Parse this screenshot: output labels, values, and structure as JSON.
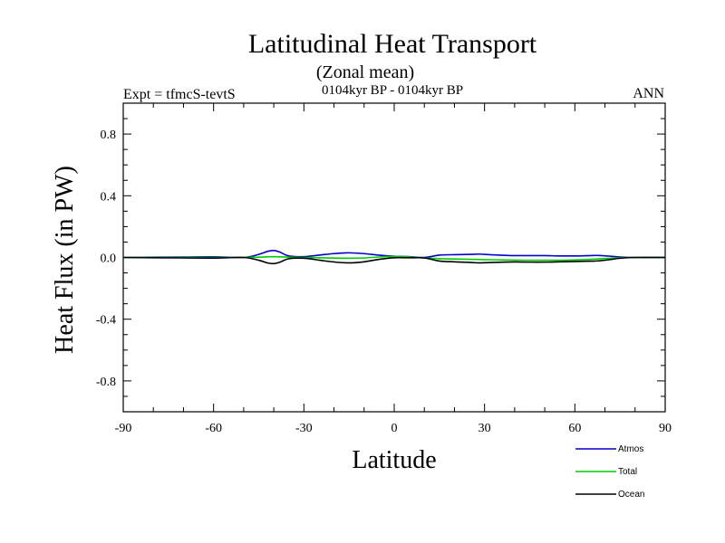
{
  "chart_data": {
    "type": "line",
    "title": "Latitudinal Heat Transport",
    "subtitle": "(Zonal mean)",
    "period": "0104kyr BP - 0104kyr BP",
    "expt_label": "Expt = tfmcS-tevtS",
    "season": "ANN",
    "xlabel": "Latitude",
    "ylabel": "Heat Flux (in PW)",
    "xlim": [
      -90,
      90
    ],
    "ylim": [
      -1.0,
      1.0
    ],
    "x_ticks": [
      -90,
      -60,
      -30,
      0,
      30,
      60,
      90
    ],
    "x_tick_labels": [
      "-90",
      "-60",
      "-30",
      "0",
      "30",
      "60",
      "90"
    ],
    "y_ticks": [
      -0.8,
      -0.4,
      0.0,
      0.4,
      0.8
    ],
    "y_tick_labels": [
      "-0.8",
      "-0.4",
      "0.0",
      "0.4",
      "0.8"
    ],
    "grid": false,
    "legend_position": "bottom-right",
    "series": [
      {
        "name": "Atmos",
        "color": "#0000cc",
        "x": [
          -90,
          -70,
          -60,
          -50,
          -45,
          -42,
          -40,
          -38,
          -35,
          -30,
          -25,
          -20,
          -15,
          -10,
          -5,
          0,
          5,
          10,
          15,
          20,
          25,
          28,
          30,
          35,
          40,
          45,
          50,
          55,
          60,
          65,
          68,
          72,
          75,
          80,
          90
        ],
        "y": [
          0.0,
          0.003,
          0.004,
          0.0,
          0.02,
          0.04,
          0.045,
          0.035,
          0.01,
          0.005,
          0.015,
          0.025,
          0.03,
          0.025,
          0.015,
          0.008,
          0.005,
          0.0,
          0.015,
          0.018,
          0.02,
          0.022,
          0.02,
          0.015,
          0.012,
          0.012,
          0.012,
          0.01,
          0.01,
          0.012,
          0.013,
          0.008,
          0.003,
          0.0,
          0.0
        ]
      },
      {
        "name": "Total",
        "color": "#00cc00",
        "x": [
          -90,
          -70,
          -60,
          -50,
          -45,
          -42,
          -40,
          -38,
          -35,
          -30,
          -25,
          -20,
          -15,
          -10,
          -5,
          0,
          5,
          10,
          15,
          20,
          25,
          28,
          30,
          35,
          40,
          45,
          50,
          55,
          60,
          65,
          68,
          72,
          75,
          80,
          90
        ],
        "y": [
          0.0,
          0.0,
          0.0,
          0.0,
          0.002,
          0.004,
          0.005,
          0.004,
          0.002,
          0.0,
          -0.002,
          -0.004,
          -0.005,
          -0.003,
          0.003,
          0.006,
          0.003,
          -0.003,
          -0.008,
          -0.01,
          -0.012,
          -0.013,
          -0.014,
          -0.016,
          -0.017,
          -0.018,
          -0.018,
          -0.018,
          -0.016,
          -0.012,
          -0.009,
          -0.005,
          -0.002,
          0.0,
          0.0
        ]
      },
      {
        "name": "Ocean",
        "color": "#000000",
        "x": [
          -90,
          -70,
          -60,
          -50,
          -45,
          -42,
          -40,
          -38,
          -35,
          -30,
          -25,
          -20,
          -15,
          -10,
          -5,
          0,
          5,
          10,
          15,
          20,
          25,
          28,
          30,
          35,
          40,
          45,
          50,
          55,
          60,
          65,
          68,
          72,
          75,
          80,
          90
        ],
        "y": [
          0.0,
          -0.003,
          -0.004,
          0.0,
          -0.018,
          -0.036,
          -0.04,
          -0.031,
          -0.008,
          -0.005,
          -0.017,
          -0.029,
          -0.035,
          -0.028,
          -0.012,
          -0.002,
          -0.002,
          -0.003,
          -0.023,
          -0.028,
          -0.032,
          -0.035,
          -0.034,
          -0.031,
          -0.029,
          -0.03,
          -0.03,
          -0.028,
          -0.026,
          -0.024,
          -0.022,
          -0.013,
          -0.005,
          0.0,
          0.0
        ]
      }
    ]
  }
}
